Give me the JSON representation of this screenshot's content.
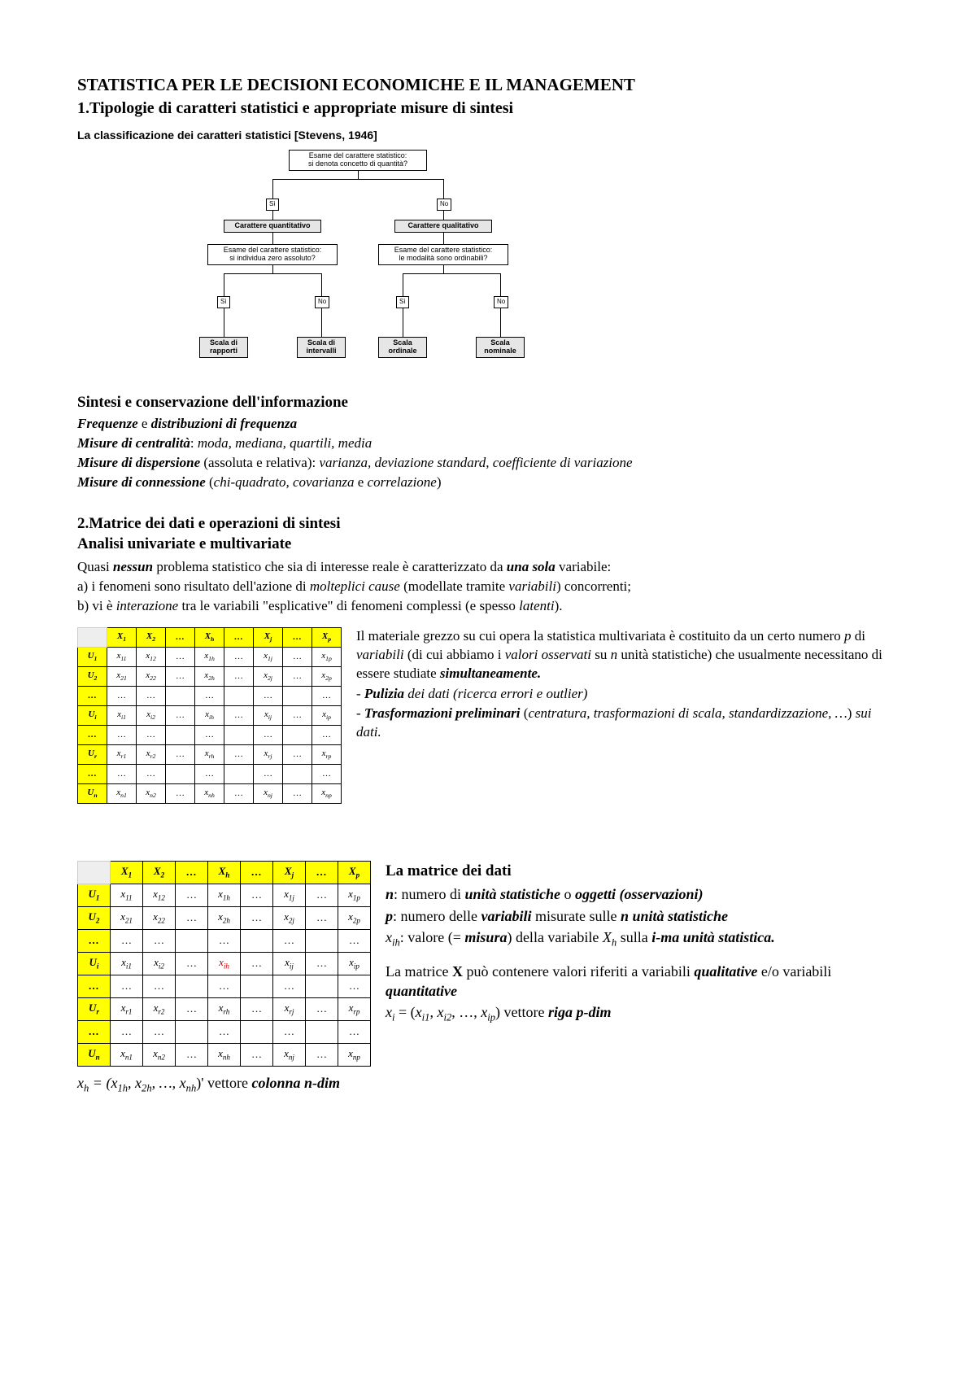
{
  "title": "STATISTICA PER LE DECISIONI ECONOMICHE E IL MANAGEMENT",
  "subtitle": "1.Tipologie di caratteri statistici e appropriate misure di sintesi",
  "classification_caption": "La classificazione dei caratteri statistici  [Stevens, 1946]",
  "flowchart": {
    "root": "Esame del carattere statistico:\nsi denota concetto di quantità?",
    "yes": "Sì",
    "no": "No",
    "quant": "Carattere quantitativo",
    "qual": "Carattere qualitativo",
    "q1": "Esame del carattere statistico:\nsi individua zero assoluto?",
    "q2": "Esame del carattere statistico:\nle modalità sono ordinabili?",
    "leaf1": "Scala di\nrapporti",
    "leaf2": "Scala di\nintervalli",
    "leaf3": "Scala\nordinale",
    "leaf4": "Scala\nnominale"
  },
  "section1": {
    "heading": "Sintesi e conservazione dell'informazione",
    "l1a": "Frequenze",
    "l1b": " e ",
    "l1c": "distribuzioni di frequenza",
    "l2a": "Misure di centralità",
    "l2b": ": ",
    "l2c": "moda, mediana, quartili, media",
    "l3a": "Misure di dispersione",
    "l3b": " (assoluta e relativa): ",
    "l3c": "varianza, deviazione standard, coefficiente di variazione",
    "l4a": "Misure di connessione",
    "l4b": " (",
    "l4c": "chi-quadrato, covarianza",
    "l4d": " e ",
    "l4e": "correlazione",
    "l4f": ")"
  },
  "section2": {
    "h1": "2.Matrice dei dati e operazioni di sintesi",
    "h2": "Analisi univariate e multivariate",
    "p_pre": "Quasi ",
    "p_nessun": "nessun",
    "p_mid1": " problema statistico che sia di interesse reale è caratterizzato da ",
    "p_una": "una sola",
    "p_mid2": " variabile:",
    "a_pre": "a) i fenomeni sono risultato dell'azione di ",
    "a_ital": "molteplici cause",
    "a_mid": " (modellate tramite ",
    "a_ital2": "variabili",
    "a_post": ") concorrenti;",
    "b_pre": "b) vi è ",
    "b_ital": "interazione",
    "b_mid": " tra le variabili \"esplicative\" di fenomeni complessi (e spesso ",
    "b_ital2": "latenti",
    "b_post": ")."
  },
  "para_right1": {
    "p1a": "Il materiale grezzo su cui opera la statistica multivariata è costituito da un certo numero ",
    "p1b": "p",
    "p1c": " di ",
    "p1d": "variabili",
    "p1e": " (di cui abbiamo i ",
    "p1f": "valori osservati",
    "p1g": " su ",
    "p1h": "n",
    "p1i": " unità statistiche) che usualmente necessitano di essere studiate ",
    "p1j": "simultaneamente.",
    "p2a": "- ",
    "p2b": "Pulizia",
    "p2c": " dei dati (",
    "p2d": "ricerca ",
    "p2e": "errori",
    "p2f": " e ",
    "p2g": "outlier",
    "p2h": ")",
    "p3a": "- ",
    "p3b": "Trasformazioni preliminari",
    "p3c": " (",
    "p3d": "centratura, trasformazioni di scala, standardizzazione, …",
    "p3e": ") ",
    "p3f": "sui dati."
  },
  "matrix_headers": {
    "cols": [
      "X",
      "X",
      "…",
      "X",
      "…",
      "X",
      "…",
      "X"
    ],
    "col_subs": [
      "1",
      "2",
      "",
      "h",
      "",
      "j",
      "",
      "p"
    ],
    "rows": [
      "U",
      "U",
      "…",
      "U",
      "…",
      "U",
      "…",
      "U"
    ],
    "row_subs": [
      "1",
      "2",
      "",
      "i",
      "",
      "r",
      "",
      "n"
    ]
  },
  "para_right2": {
    "h": "La matrice dei dati",
    "l1a": "n",
    "l1b": ": numero di ",
    "l1c": "unità statistiche",
    "l1d": " o ",
    "l1e": "oggetti (osservazioni)",
    "l2a": "p",
    "l2b": ": numero delle ",
    "l2c": "variabili",
    "l2d": " misurate sulle ",
    "l2e": "n unità statistiche",
    "l3a": "x",
    "l3b": ": valore (= ",
    "l3c": "misura",
    "l3d": ") della variabile ",
    "l3e": "X",
    "l3f": " sulla ",
    "l3g": "i-ma unità statistica.",
    "l4a": "La matrice ",
    "l4b": "X",
    "l4c": " può contenere valori riferiti a variabili ",
    "l4d": "qualitative",
    "l4e": " e/o variabili ",
    "l4f": "quantitative",
    "l5a": "x",
    "l5b": " = (",
    "l5c": "x",
    "l5d": ", ",
    "l5e": "x",
    "l5f": ", …, ",
    "l5g": "x",
    "l5h": ") vettore ",
    "l5i": "riga p-dim"
  },
  "vec_col": {
    "a": "x",
    "b": " = (",
    "c": "x",
    "d": ", ",
    "e": "x",
    "f": ", …, ",
    "g": "x",
    "h": ")' vettore ",
    "i": "colonna n-dim"
  }
}
